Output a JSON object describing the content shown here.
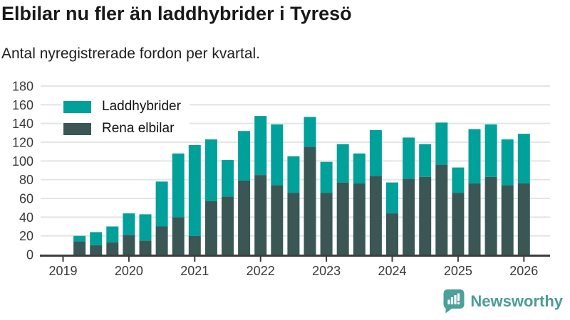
{
  "header": {
    "title": "Elbilar nu fler än laddhybrider i Tyresö",
    "subtitle": "Antal nyregistrerade fordon per kvartal."
  },
  "chart_data": {
    "type": "bar",
    "stacked": true,
    "categories": [
      "2019 Q2",
      "2019 Q3",
      "2019 Q4",
      "2020 Q1",
      "2020 Q2",
      "2020 Q3",
      "2020 Q4",
      "2021 Q1",
      "2021 Q2",
      "2021 Q3",
      "2021 Q4",
      "2022 Q1",
      "2022 Q2",
      "2022 Q3",
      "2022 Q4",
      "2023 Q1",
      "2023 Q2",
      "2023 Q3",
      "2023 Q4",
      "2024 Q1",
      "2024 Q2",
      "2024 Q3",
      "2024 Q4",
      "2025 Q1",
      "2025 Q2",
      "2025 Q3",
      "2025 Q4",
      "2026 Q1"
    ],
    "series": [
      {
        "name": "Laddhybrider",
        "color": "#00a09b",
        "values": [
          6,
          14,
          17,
          23,
          28,
          48,
          68,
          97,
          66,
          39,
          53,
          63,
          65,
          39,
          32,
          33,
          41,
          32,
          49,
          33,
          44,
          35,
          45,
          27,
          58,
          56,
          49,
          53
        ]
      },
      {
        "name": "Rena elbilar",
        "color": "#3a5755",
        "values": [
          14,
          10,
          13,
          21,
          15,
          30,
          40,
          20,
          57,
          62,
          79,
          85,
          74,
          66,
          115,
          66,
          77,
          76,
          84,
          44,
          81,
          83,
          96,
          66,
          76,
          83,
          74,
          76
        ]
      }
    ],
    "stack_bottom_series": "Rena elbilar",
    "totals": [
      20,
      24,
      30,
      44,
      43,
      78,
      108,
      117,
      123,
      101,
      132,
      148,
      139,
      105,
      147,
      99,
      118,
      108,
      133,
      77,
      125,
      118,
      141,
      93,
      134,
      139,
      123,
      129
    ],
    "x_tick_labels": [
      "2019",
      "2020",
      "2021",
      "2022",
      "2023",
      "2024",
      "2025",
      "2026"
    ],
    "y_ticks": [
      0,
      20,
      40,
      60,
      80,
      100,
      120,
      140,
      160,
      180
    ],
    "ylim": [
      0,
      180
    ],
    "xlabel": "",
    "ylabel": "",
    "grid": "horizontal",
    "legend_position": "top-left-inside"
  },
  "footer": {
    "brand": "Newsworthy"
  },
  "colors": {
    "laddhybrider": "#00a09b",
    "rena_elbilar": "#3a5755",
    "brand_teal": "#4ba09a",
    "axis_text": "#3a3a3a",
    "gridline": "#e4e4e4",
    "axis_line": "#3d3d3d"
  }
}
